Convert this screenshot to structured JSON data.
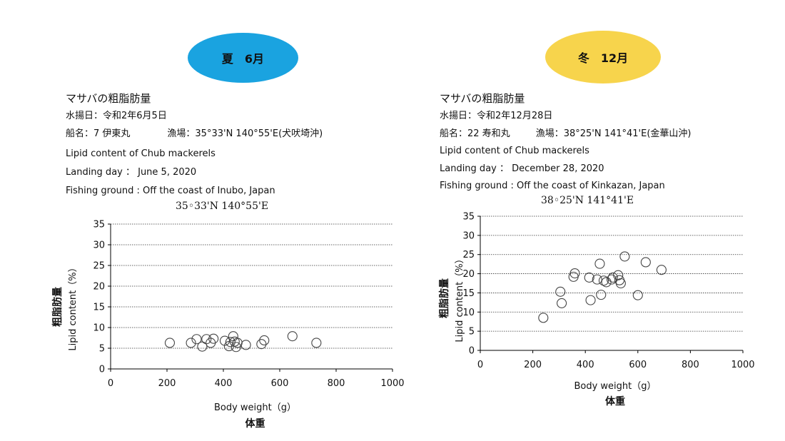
{
  "panels": [
    {
      "season_label": "夏　6月",
      "badge_color": "#1aa3e0",
      "title": "マサバの粗脂肪量",
      "landing_date_jp": "水揚日：令和2年6月5日",
      "vessel_jp": "船名：7 伊東丸",
      "ground_jp": "漁場：35°33'N 140°55'E(犬吠埼沖)",
      "en_title": "Lipid content of Chub mackerels",
      "en_landing": "Landing day ： June 5, 2020",
      "en_ground": "Fishing ground : Off the coast of Inubo, Japan",
      "en_coords": "35◦33'N 140°55'E"
    },
    {
      "season_label": "冬　12月",
      "badge_color": "#f7d44c",
      "title": "マサバの粗脂肪量",
      "landing_date_jp": "水揚日：令和2年12月28日",
      "vessel_jp": "船名：22 寿和丸",
      "ground_jp": "漁場：38°25'N 141°41'E(金華山沖)",
      "en_title": "Lipid content of Chub mackerels",
      "en_landing": "Landing day ： December 28, 2020",
      "en_ground": "Fishing ground : Off the coast of Kinkazan, Japan",
      "en_coords": "38◦25'N 141°41'E"
    }
  ],
  "chart_data": [
    {
      "type": "scatter",
      "xlabel": "Body weight（g）",
      "xlabel_jp": "体重",
      "ylabel": "Lipid content（%）",
      "ylabel_jp": "粗脂肪量",
      "xlim": [
        0,
        1000
      ],
      "ylim": [
        0,
        35
      ],
      "xticks": [
        0,
        200,
        400,
        600,
        800,
        1000
      ],
      "yticks": [
        0,
        5,
        10,
        15,
        20,
        25,
        30,
        35
      ],
      "grid": true,
      "marker": "open-circle",
      "points": [
        [
          210,
          6.3
        ],
        [
          285,
          6.3
        ],
        [
          305,
          7.2
        ],
        [
          325,
          5.4
        ],
        [
          340,
          7.2
        ],
        [
          355,
          6.3
        ],
        [
          365,
          7.3
        ],
        [
          405,
          6.8
        ],
        [
          420,
          5.5
        ],
        [
          425,
          6.5
        ],
        [
          435,
          7.9
        ],
        [
          440,
          6.6
        ],
        [
          445,
          5.3
        ],
        [
          450,
          6.3
        ],
        [
          480,
          5.8
        ],
        [
          535,
          6.0
        ],
        [
          545,
          6.9
        ],
        [
          645,
          7.9
        ],
        [
          730,
          6.3
        ]
      ]
    },
    {
      "type": "scatter",
      "xlabel": "Body weight（g）",
      "xlabel_jp": "体重",
      "ylabel": "Lipid content（%）",
      "ylabel_jp": "粗脂肪量",
      "xlim": [
        0,
        1000
      ],
      "ylim": [
        0,
        35
      ],
      "xticks": [
        0,
        200,
        400,
        600,
        800,
        1000
      ],
      "yticks": [
        0,
        5,
        10,
        15,
        20,
        25,
        30,
        35
      ],
      "grid": true,
      "marker": "open-circle",
      "points": [
        [
          240,
          8.5
        ],
        [
          305,
          15.3
        ],
        [
          310,
          12.3
        ],
        [
          355,
          19.2
        ],
        [
          360,
          20.1
        ],
        [
          415,
          19.0
        ],
        [
          420,
          13.1
        ],
        [
          445,
          18.5
        ],
        [
          455,
          22.6
        ],
        [
          460,
          14.5
        ],
        [
          470,
          18.2
        ],
        [
          480,
          17.8
        ],
        [
          500,
          18.5
        ],
        [
          505,
          19.0
        ],
        [
          525,
          19.6
        ],
        [
          530,
          18.3
        ],
        [
          535,
          17.5
        ],
        [
          550,
          24.5
        ],
        [
          600,
          14.4
        ],
        [
          630,
          23.0
        ],
        [
          690,
          21.0
        ]
      ]
    }
  ]
}
